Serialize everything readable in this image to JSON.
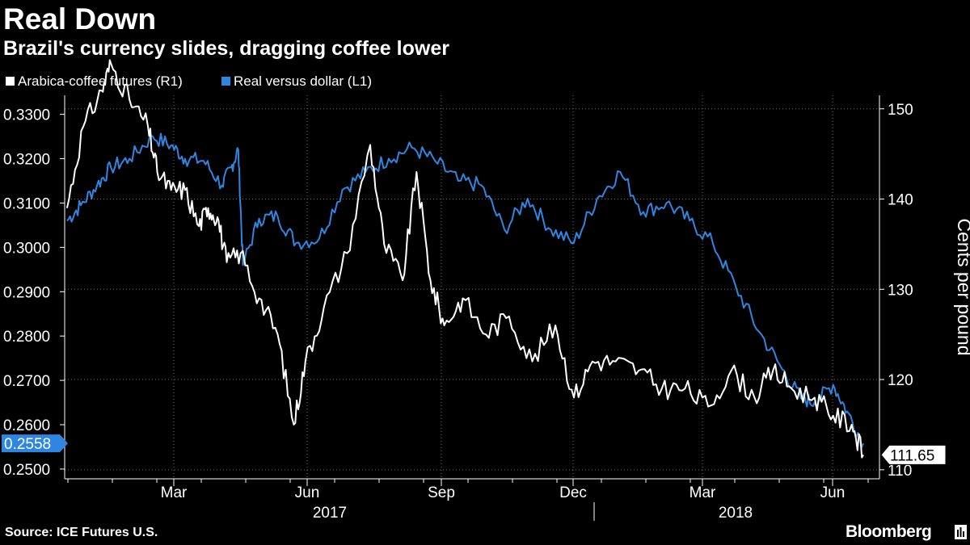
{
  "header": {
    "title": "Real Down",
    "subtitle": "Brazil's currency slides, dragging coffee lower"
  },
  "footer": {
    "source": "Source: ICE Futures U.S.",
    "brand": "Bloomberg"
  },
  "colors": {
    "background": "#000000",
    "coffee": "#ffffff",
    "real": "#2f86e0",
    "grid": "#6b6b6b"
  },
  "chart_data": {
    "type": "line",
    "title": "Real Down",
    "subtitle": "Brazil's currency slides, dragging coffee lower",
    "left_axis": {
      "ticks": [
        0.25,
        0.26,
        0.27,
        0.28,
        0.29,
        0.3,
        0.31,
        0.32,
        0.33
      ],
      "tick_labels": [
        "0.2500",
        "0.2600",
        "0.2700",
        "0.2800",
        "0.2900",
        "0.3000",
        "0.3100",
        "0.3200",
        "0.3300"
      ],
      "range": [
        0.2478,
        0.3343
      ],
      "last_value_label": "0.2558"
    },
    "right_axis": {
      "label": "Cents per pound",
      "ticks": [
        110,
        120,
        130,
        140,
        150
      ],
      "tick_labels": [
        "110",
        "120",
        "130",
        "140",
        "150"
      ],
      "range": [
        109.0,
        151.5
      ],
      "last_value_label": "111.65"
    },
    "x_axis": {
      "month_labels": [
        "Mar",
        "Jun",
        "Sep",
        "Dec",
        "Mar",
        "Jun"
      ],
      "year_labels": [
        "2017",
        "2018"
      ],
      "range": [
        0,
        17.6
      ]
    },
    "legend": [
      "Arabica-coffee futures (R1)",
      "Real versus dollar (L1)"
    ],
    "series": [
      {
        "name": "Real versus dollar (L1)",
        "axis": "left",
        "x": [
          0.05,
          0.35,
          0.7,
          1.0,
          1.4,
          1.9,
          2.3,
          2.6,
          3.0,
          3.4,
          3.6,
          3.75,
          3.85,
          4.2,
          4.6,
          5.0,
          5.5,
          6.0,
          6.5,
          7.0,
          7.5,
          8.0,
          8.5,
          9.0,
          9.5,
          10.0,
          10.5,
          11.0,
          11.5,
          12.0,
          12.5,
          13.0,
          13.5,
          14.0,
          14.5,
          15.0,
          15.5,
          15.9,
          16.2,
          16.6,
          16.9,
          17.25
        ],
        "values": [
          0.306,
          0.3095,
          0.314,
          0.318,
          0.32,
          0.325,
          0.323,
          0.32,
          0.3195,
          0.314,
          0.318,
          0.322,
          0.296,
          0.3065,
          0.307,
          0.301,
          0.302,
          0.313,
          0.317,
          0.32,
          0.3225,
          0.3195,
          0.315,
          0.314,
          0.304,
          0.311,
          0.304,
          0.301,
          0.311,
          0.317,
          0.308,
          0.31,
          0.306,
          0.301,
          0.291,
          0.281,
          0.2725,
          0.266,
          0.265,
          0.269,
          0.263,
          0.2558
        ]
      },
      {
        "name": "Arabica-coffee futures (R1)",
        "axis": "right",
        "x": [
          0.05,
          0.4,
          0.8,
          1.0,
          1.4,
          1.8,
          2.0,
          2.3,
          2.6,
          2.9,
          3.1,
          3.3,
          3.5,
          3.8,
          4.2,
          4.6,
          4.95,
          5.2,
          5.6,
          6.1,
          6.6,
          6.9,
          7.3,
          7.6,
          7.9,
          8.2,
          8.6,
          9.1,
          9.6,
          10.1,
          10.6,
          11.0,
          11.4,
          11.9,
          12.4,
          12.9,
          13.4,
          13.9,
          14.4,
          14.9,
          15.3,
          15.7,
          16.2,
          16.6,
          17.0,
          17.25
        ],
        "values": [
          139,
          148,
          152,
          155,
          151,
          148,
          143,
          141,
          141,
          137,
          139,
          138,
          133,
          134,
          129,
          125,
          115,
          122,
          128,
          134,
          146,
          135,
          131,
          143,
          131,
          126,
          129,
          125,
          127,
          122,
          126,
          118,
          122,
          122,
          121,
          119,
          119,
          117,
          121,
          118,
          121,
          119,
          118,
          116,
          115,
          111.65
        ]
      }
    ]
  }
}
